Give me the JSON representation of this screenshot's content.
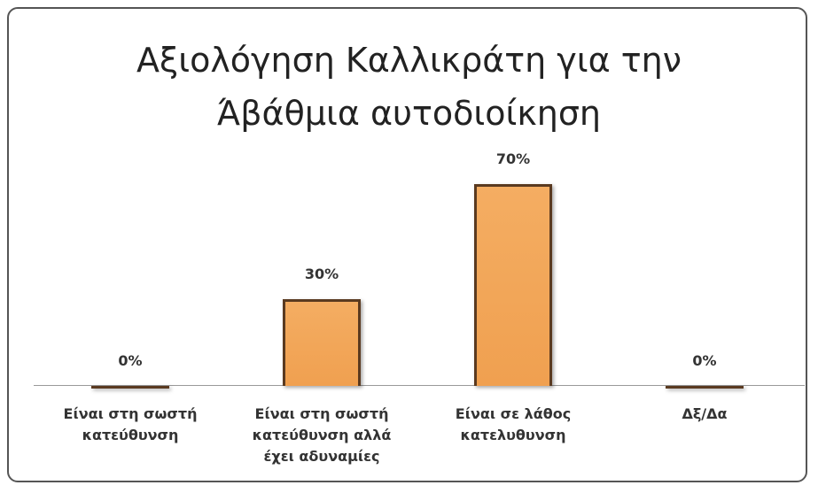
{
  "chart_data": {
    "type": "bar",
    "title": "Αξιολόγηση Καλλικράτη για την Άβάθμια αυτοδιοίκηση",
    "categories": [
      "Είναι στη σωστή κατεύθυνση",
      "Είναι στη σωστή κατεύθυνση αλλά έχει αδυναμίες",
      "Είναι σε λάθος κατελυθυνση",
      "Δξ/Δα"
    ],
    "values": [
      0,
      30,
      70,
      0
    ],
    "value_labels": [
      "0%",
      "30%",
      "70%",
      "0%"
    ],
    "color": "#f0a050"
  }
}
